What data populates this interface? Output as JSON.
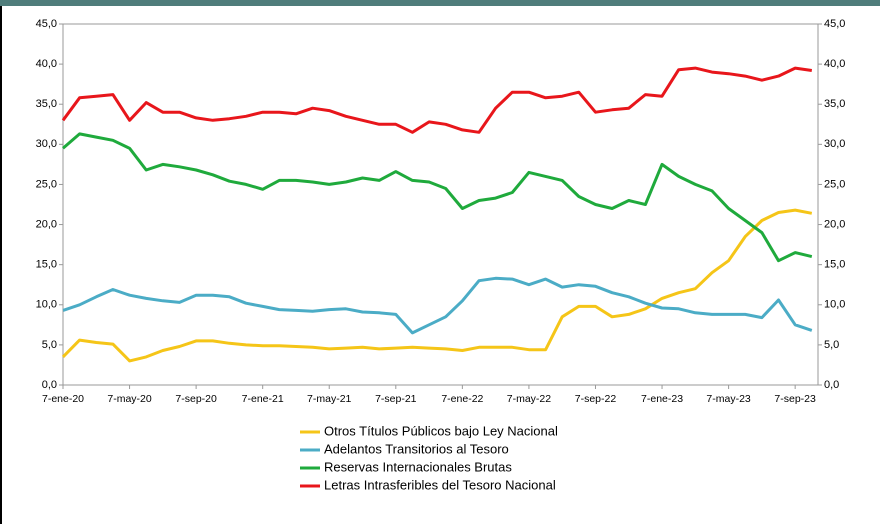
{
  "chart_data": {
    "type": "line",
    "categories": [
      "7-ene-20",
      null,
      null,
      null,
      "7-may-20",
      null,
      null,
      null,
      "7-sep-20",
      null,
      null,
      null,
      "7-ene-21",
      null,
      null,
      null,
      "7-may-21",
      null,
      null,
      null,
      "7-sep-21",
      null,
      null,
      null,
      "7-ene-22",
      null,
      null,
      null,
      "7-may-22",
      null,
      null,
      null,
      "7-sep-22",
      null,
      null,
      null,
      "7-ene-23",
      null,
      null,
      null,
      "7-may-23",
      null,
      null,
      null,
      "7-sep-23",
      null
    ],
    "series": [
      {
        "name": "Otros Títulos Públicos bajo Ley Nacional",
        "color": "#f5c518",
        "values": [
          3.5,
          5.6,
          5.3,
          5.1,
          3.0,
          3.5,
          4.3,
          4.8,
          5.5,
          5.5,
          5.2,
          5.0,
          4.9,
          4.9,
          4.8,
          4.7,
          4.5,
          4.6,
          4.7,
          4.5,
          4.6,
          4.7,
          4.6,
          4.5,
          4.3,
          4.7,
          4.7,
          4.7,
          4.4,
          4.4,
          8.5,
          9.8,
          9.8,
          8.5,
          8.8,
          9.5,
          10.8,
          11.5,
          12.0,
          14.0,
          15.5,
          18.5,
          20.5,
          21.5,
          21.8,
          21.4
        ]
      },
      {
        "name": "Adelantos Transitorios al Tesoro",
        "color": "#4bacc6",
        "values": [
          9.3,
          10.0,
          11.0,
          11.9,
          11.2,
          10.8,
          10.5,
          10.3,
          11.2,
          11.2,
          11.0,
          10.2,
          9.8,
          9.4,
          9.3,
          9.2,
          9.4,
          9.5,
          9.1,
          9.0,
          8.8,
          6.5,
          7.5,
          8.5,
          10.5,
          13.0,
          13.3,
          13.2,
          12.5,
          13.2,
          12.2,
          12.5,
          12.3,
          11.5,
          11.0,
          10.2,
          9.6,
          9.5,
          9.0,
          8.8,
          8.8,
          8.8,
          8.4,
          10.6,
          7.5,
          6.8
        ]
      },
      {
        "name": "Reservas Internacionales Brutas",
        "color": "#1faa3c",
        "values": [
          29.5,
          31.3,
          30.9,
          30.5,
          29.5,
          26.8,
          27.5,
          27.2,
          26.8,
          26.2,
          25.4,
          25.0,
          24.4,
          25.5,
          25.5,
          25.3,
          25.0,
          25.3,
          25.8,
          25.5,
          26.6,
          25.5,
          25.3,
          24.5,
          22.0,
          23.0,
          23.3,
          24.0,
          26.5,
          26.0,
          25.5,
          23.5,
          22.5,
          22.0,
          23.0,
          22.5,
          27.5,
          26.0,
          25.0,
          24.2,
          22.0,
          20.5,
          19.0,
          15.5,
          16.5,
          16.0
        ]
      },
      {
        "name": "Letras Intrasferibles del Tesoro Nacional",
        "color": "#e8161b",
        "values": [
          33.0,
          35.8,
          36.0,
          36.2,
          33.0,
          35.2,
          34.0,
          34.0,
          33.3,
          33.0,
          33.2,
          33.5,
          34.0,
          34.0,
          33.8,
          34.5,
          34.2,
          33.5,
          33.0,
          32.5,
          32.5,
          31.5,
          32.8,
          32.5,
          31.8,
          31.5,
          34.5,
          36.5,
          36.5,
          35.8,
          36.0,
          36.5,
          34.0,
          34.3,
          34.5,
          36.2,
          36.0,
          39.3,
          39.5,
          39.0,
          38.8,
          38.5,
          38.0,
          38.5,
          39.5,
          39.2
        ]
      }
    ],
    "ylim": [
      0,
      45
    ],
    "yticks": [
      {
        "value": 0,
        "label": "0,0"
      },
      {
        "value": 5,
        "label": "5,0"
      },
      {
        "value": 10,
        "label": "10,0"
      },
      {
        "value": 15,
        "label": "15,0"
      },
      {
        "value": 20,
        "label": "20,0"
      },
      {
        "value": 25,
        "label": "25,0"
      },
      {
        "value": 30,
        "label": "30,0"
      },
      {
        "value": 35,
        "label": "35,0"
      },
      {
        "value": 40,
        "label": "40,0"
      },
      {
        "value": 45,
        "label": "45,0"
      }
    ],
    "y2lim": [
      0,
      45
    ],
    "y2ticks": [
      {
        "value": 0,
        "label": "0,0"
      },
      {
        "value": 5,
        "label": "5,0"
      },
      {
        "value": 10,
        "label": "10,0"
      },
      {
        "value": 15,
        "label": "15,0"
      },
      {
        "value": 20,
        "label": "20,0"
      },
      {
        "value": 25,
        "label": "25,0"
      },
      {
        "value": 30,
        "label": "30,0"
      },
      {
        "value": 35,
        "label": "35,0"
      },
      {
        "value": 40,
        "label": "40,0"
      },
      {
        "value": 45,
        "label": "45,0"
      }
    ],
    "grid": false,
    "legend": "bottom"
  }
}
